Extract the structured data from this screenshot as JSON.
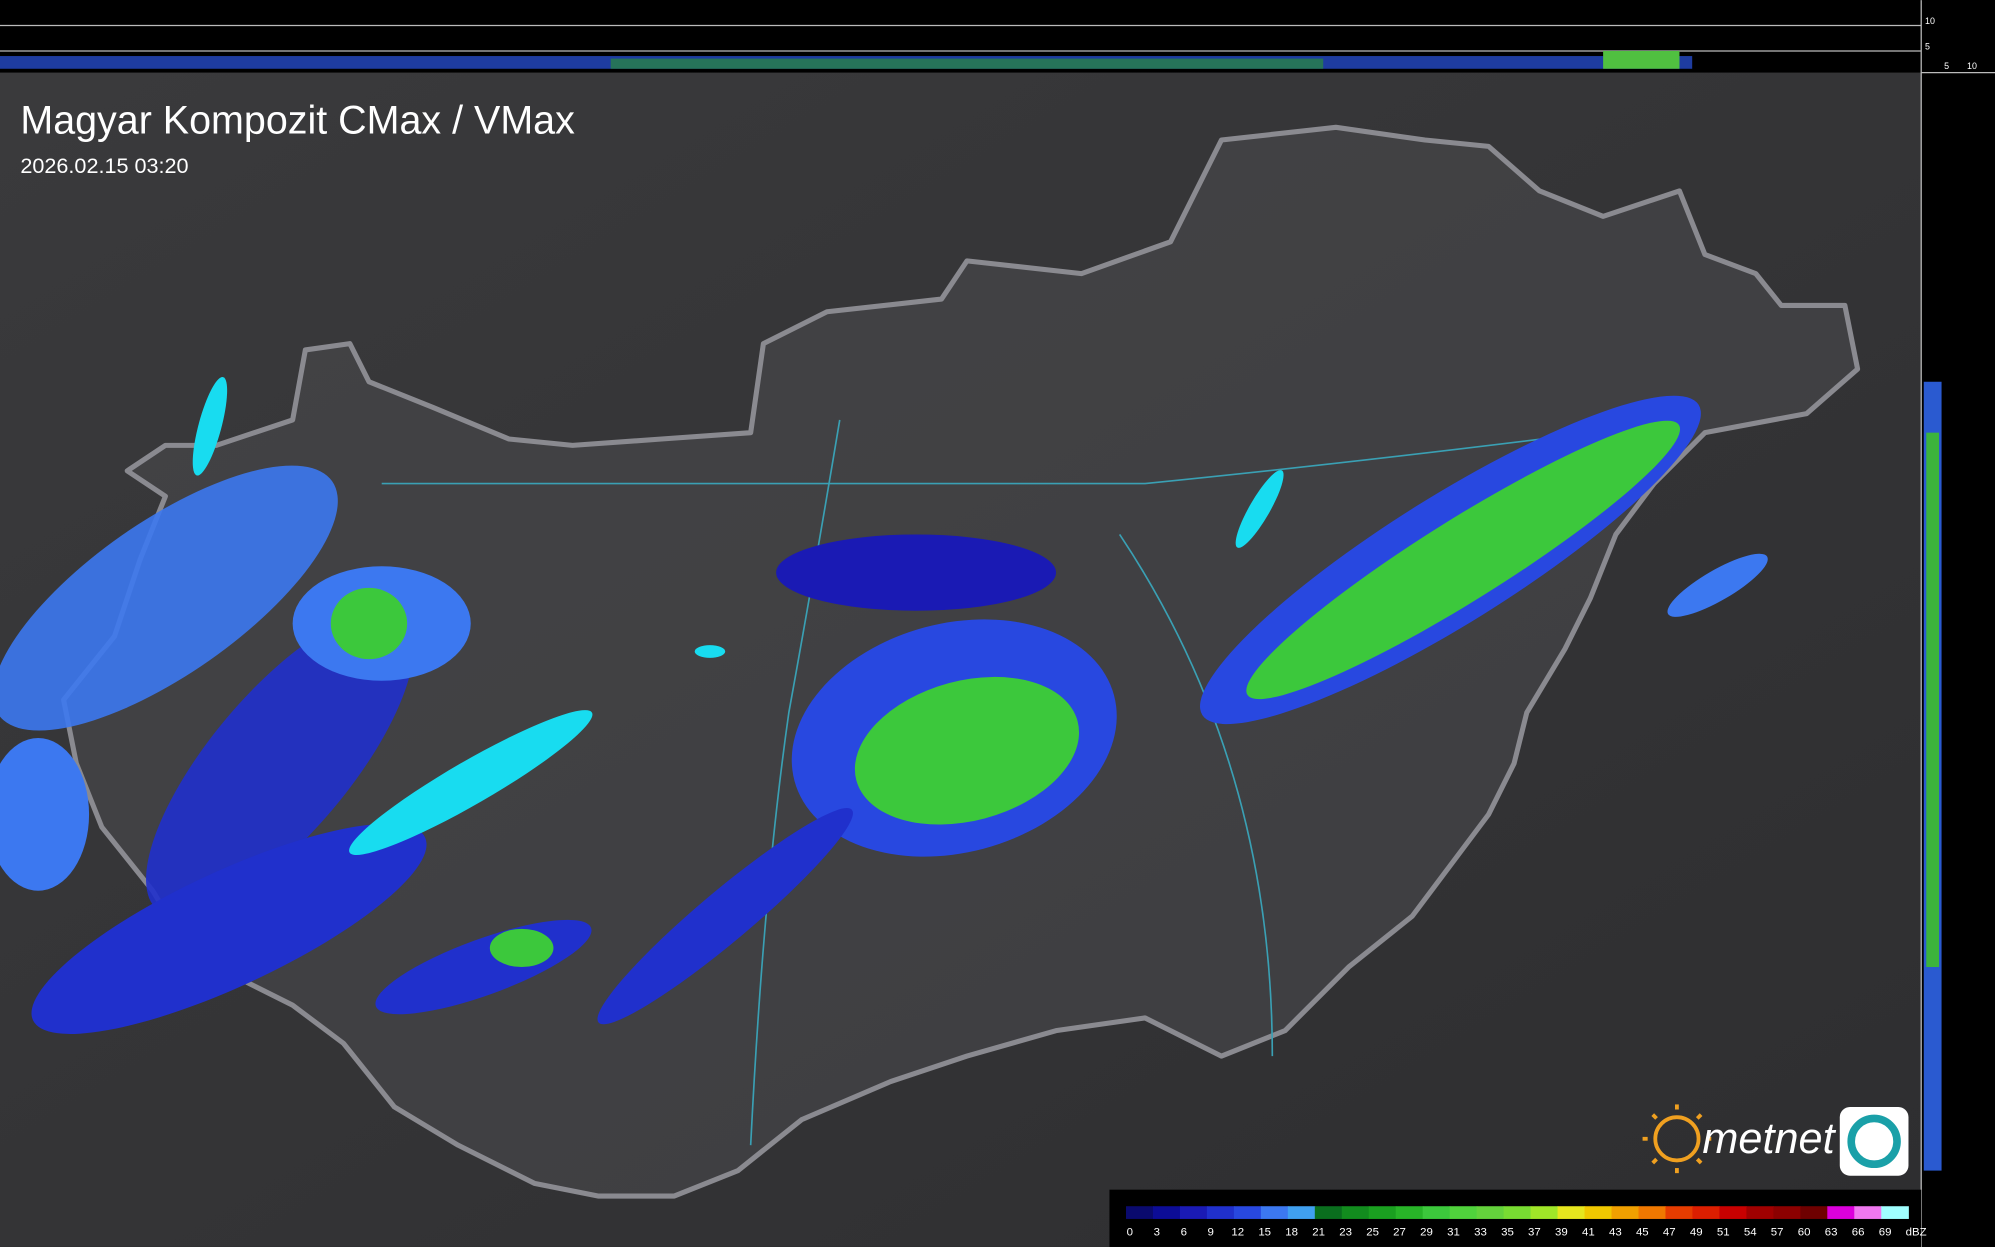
{
  "header": {
    "title": "Magyar Kompozit CMax / VMax",
    "timestamp": "2026.02.15 03:20"
  },
  "legend": {
    "values": [
      0,
      3,
      6,
      9,
      12,
      15,
      18,
      21,
      23,
      25,
      27,
      29,
      31,
      33,
      35,
      37,
      39,
      41,
      43,
      45,
      47,
      49,
      51,
      54,
      57,
      60,
      63,
      66,
      69
    ],
    "colors": [
      "#0a0a6e",
      "#0c0c96",
      "#1a1ab4",
      "#2030cc",
      "#2848e0",
      "#3c78f0",
      "#40a0f0",
      "#0a6e1e",
      "#128c1e",
      "#1aa020",
      "#28b428",
      "#3cc83c",
      "#50d23c",
      "#64d23c",
      "#78dc32",
      "#a0e628",
      "#e6e61e",
      "#f0c800",
      "#f0a000",
      "#f07800",
      "#e63c00",
      "#dc1e00",
      "#c80000",
      "#a00000",
      "#8c0000",
      "#6e0000",
      "#dc00dc",
      "#f078f0",
      "#a0ffff"
    ],
    "unit": "dBZ"
  },
  "logo": {
    "text": "metnet"
  },
  "profile": {
    "top_ticks": [
      10,
      5
    ],
    "side_ticks": [
      5,
      10
    ]
  }
}
